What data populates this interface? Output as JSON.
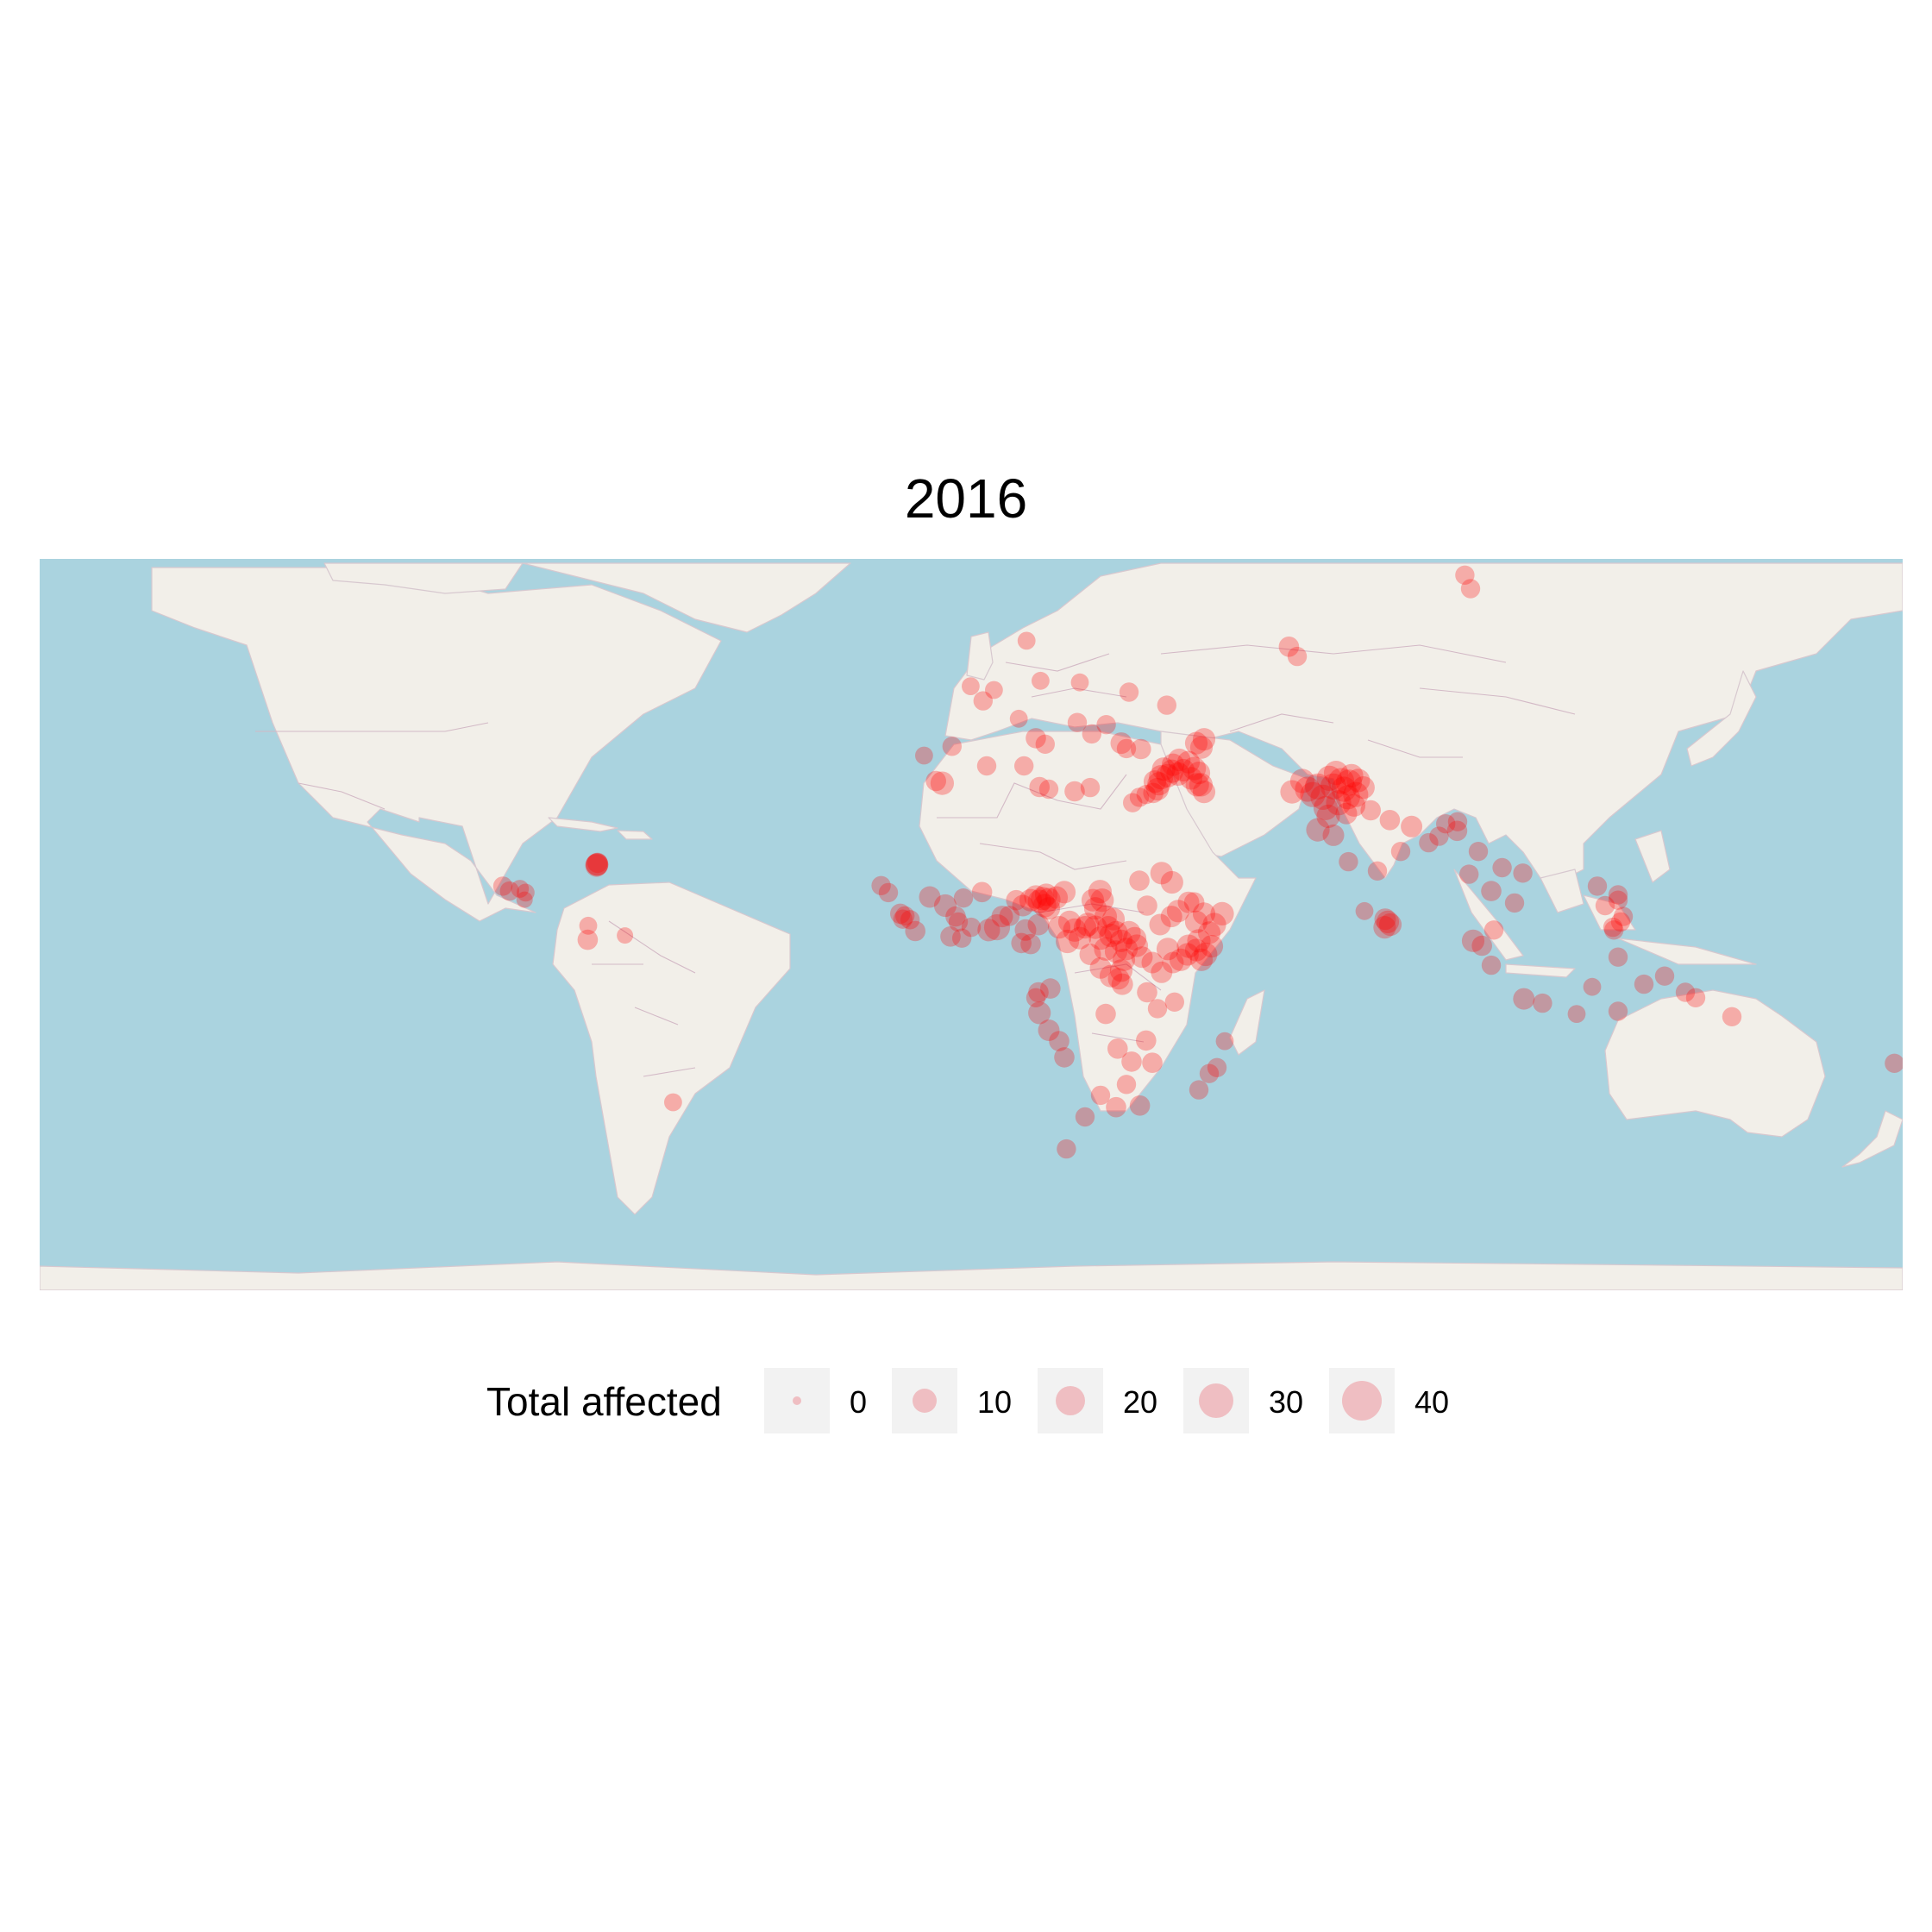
{
  "title": "2016",
  "legend": {
    "title": "Total affected",
    "entries": [
      {
        "label": "0",
        "value": 0
      },
      {
        "label": "10",
        "value": 10
      },
      {
        "label": "20",
        "value": 20
      },
      {
        "label": "30",
        "value": 30
      },
      {
        "label": "40",
        "value": 40
      }
    ]
  },
  "colors": {
    "ocean": "#aad3df",
    "land": "#f2efe9",
    "borders": "#d3b9c6",
    "point": "#ff0000",
    "legend_key_bg": "#f2f2f2"
  },
  "map_data": {
    "projection": "equirectangular",
    "lon_range": [
      -180,
      180
    ],
    "lat_range": [
      -60,
      75
    ],
    "points": [
      [
        -72.3,
        18.6,
        8
      ],
      [
        -72.4,
        18.4,
        8
      ],
      [
        -72.2,
        18.9,
        6
      ],
      [
        -72.3,
        18.6,
        8
      ],
      [
        -90.5,
        14.6,
        5
      ],
      [
        -87.2,
        14.1,
        4
      ],
      [
        -89.2,
        13.7,
        5
      ],
      [
        -86.3,
        12.1,
        3
      ],
      [
        -86.1,
        13.4,
        4
      ],
      [
        -74.1,
        4.7,
        6
      ],
      [
        -74.0,
        7.3,
        4
      ],
      [
        -66.9,
        5.5,
        3
      ],
      [
        -57.6,
        -25.3,
        4
      ],
      [
        -17.4,
        14.7,
        5
      ],
      [
        -16.0,
        13.4,
        5
      ],
      [
        -13.7,
        9.5,
        6
      ],
      [
        -12.8,
        9.1,
        5
      ],
      [
        -11.8,
        8.4,
        5
      ],
      [
        -10.8,
        6.3,
        6
      ],
      [
        -13.2,
        8.5,
        5
      ],
      [
        -8.0,
        12.6,
        7
      ],
      [
        -4.0,
        5.3,
        6
      ],
      [
        -1.5,
        12.4,
        5
      ],
      [
        -1.8,
        5.0,
        5
      ],
      [
        0.0,
        7.0,
        5
      ],
      [
        -3.0,
        9.0,
        6
      ],
      [
        -5.0,
        11.0,
        8
      ],
      [
        -2.5,
        8.0,
        5
      ],
      [
        2.1,
        13.5,
        6
      ],
      [
        3.4,
        6.5,
        8
      ],
      [
        5.0,
        7.0,
        12
      ],
      [
        6.0,
        9.0,
        7
      ],
      [
        7.4,
        9.1,
        6
      ],
      [
        8.7,
        12.0,
        6
      ],
      [
        10.0,
        11.0,
        7
      ],
      [
        13.2,
        11.8,
        9
      ],
      [
        13.8,
        12.3,
        9
      ],
      [
        12.5,
        12.6,
        9
      ],
      [
        14.2,
        11.0,
        9
      ],
      [
        11.5,
        12.0,
        8
      ],
      [
        15.0,
        12.1,
        9
      ],
      [
        14.5,
        13.0,
        8
      ],
      [
        9.7,
        4.1,
        6
      ],
      [
        11.5,
        3.9,
        6
      ],
      [
        10.5,
        6.5,
        7
      ],
      [
        13.0,
        7.5,
        7
      ],
      [
        15.0,
        10.5,
        8
      ],
      [
        16.5,
        12.5,
        8
      ],
      [
        18.0,
        13.5,
        8
      ],
      [
        18.6,
        4.4,
        9
      ],
      [
        20.0,
        6.5,
        9
      ],
      [
        19.0,
        8.0,
        8
      ],
      [
        17.0,
        7.0,
        8
      ],
      [
        21.0,
        5.0,
        8
      ],
      [
        22.0,
        7.0,
        8
      ],
      [
        23.5,
        12.0,
        8
      ],
      [
        24.9,
        13.6,
        9
      ],
      [
        25.3,
        12.0,
        9
      ],
      [
        24.0,
        10.5,
        8
      ],
      [
        26.0,
        9.0,
        8
      ],
      [
        27.5,
        8.5,
        8
      ],
      [
        28.0,
        6.0,
        9
      ],
      [
        29.0,
        4.5,
        8
      ],
      [
        30.5,
        6.0,
        9
      ],
      [
        31.6,
        4.9,
        9
      ],
      [
        30.0,
        3.0,
        8
      ],
      [
        32.0,
        3.6,
        8
      ],
      [
        29.5,
        1.0,
        8
      ],
      [
        29.0,
        -1.0,
        8
      ],
      [
        28.5,
        -2.5,
        7
      ],
      [
        29.2,
        -3.5,
        7
      ],
      [
        27.0,
        -2.0,
        8
      ],
      [
        25.0,
        -0.5,
        7
      ],
      [
        23.0,
        2.0,
        7
      ],
      [
        22.5,
        7.5,
        9
      ],
      [
        24.0,
        7.0,
        9
      ],
      [
        25.0,
        5.0,
        9
      ],
      [
        26.0,
        3.0,
        9
      ],
      [
        27.0,
        5.5,
        9
      ],
      [
        28.0,
        2.5,
        8
      ],
      [
        26.5,
        7.0,
        8
      ],
      [
        32.5,
        15.6,
        6
      ],
      [
        34.0,
        11.0,
        6
      ],
      [
        36.8,
        17.0,
        8
      ],
      [
        38.8,
        15.3,
        8
      ],
      [
        38.7,
        9.0,
        7
      ],
      [
        36.5,
        7.5,
        7
      ],
      [
        40.0,
        10.0,
        8
      ],
      [
        42.0,
        11.6,
        7
      ],
      [
        43.1,
        11.6,
        6
      ],
      [
        45.3,
        2.0,
        9
      ],
      [
        44.0,
        4.5,
        9
      ],
      [
        42.0,
        3.5,
        9
      ],
      [
        43.5,
        8.0,
        8
      ],
      [
        46.0,
        6.0,
        8
      ],
      [
        47.0,
        7.5,
        9
      ],
      [
        48.5,
        9.5,
        9
      ],
      [
        45.0,
        9.5,
        8
      ],
      [
        41.8,
        2.0,
        8
      ],
      [
        40.5,
        1.0,
        8
      ],
      [
        39.0,
        0.5,
        7
      ],
      [
        38.0,
        3.0,
        8
      ],
      [
        36.8,
        -1.3,
        7
      ],
      [
        35.0,
        0.5,
        7
      ],
      [
        33.0,
        1.5,
        7
      ],
      [
        43.5,
        2.8,
        8
      ],
      [
        44.5,
        1.0,
        8
      ],
      [
        46.5,
        3.5,
        8
      ],
      [
        13.2,
        -8.8,
        8
      ],
      [
        15.0,
        -12.0,
        7
      ],
      [
        17.0,
        -14.0,
        6
      ],
      [
        18.0,
        -17.0,
        6
      ],
      [
        13.0,
        -5.0,
        6
      ],
      [
        15.3,
        -4.3,
        6
      ],
      [
        12.5,
        -6.0,
        5
      ],
      [
        26.0,
        -9.0,
        6
      ],
      [
        28.3,
        -15.4,
        6
      ],
      [
        31.0,
        -17.8,
        6
      ],
      [
        32.6,
        -25.9,
        6
      ],
      [
        35.0,
        -18.0,
        6
      ],
      [
        33.8,
        -13.9,
        6
      ],
      [
        28.0,
        -26.2,
        6
      ],
      [
        18.4,
        -33.9,
        5
      ],
      [
        25.0,
        -24.0,
        5
      ],
      [
        22.0,
        -28.0,
        5
      ],
      [
        30.0,
        -22.0,
        5
      ],
      [
        39.3,
        -6.8,
        5
      ],
      [
        36.0,
        -8.0,
        5
      ],
      [
        34.0,
        -5.0,
        6
      ],
      [
        47.5,
        -18.9,
        5
      ],
      [
        44.0,
        -23.0,
        5
      ],
      [
        46.0,
        -20.0,
        5
      ],
      [
        49.0,
        -14.0,
        4
      ],
      [
        -5.6,
        33.6,
        9
      ],
      [
        -6.8,
        34.0,
        6
      ],
      [
        3.0,
        36.8,
        5
      ],
      [
        10.2,
        36.8,
        5
      ],
      [
        13.2,
        32.9,
        6
      ],
      [
        15.0,
        32.5,
        5
      ],
      [
        20.0,
        32.1,
        6
      ],
      [
        23.0,
        32.8,
        5
      ],
      [
        31.2,
        30.0,
        5
      ],
      [
        32.5,
        31.0,
        5
      ],
      [
        33.8,
        31.5,
        5
      ],
      [
        35.2,
        31.8,
        6
      ],
      [
        35.5,
        33.9,
        8
      ],
      [
        36.3,
        33.5,
        9
      ],
      [
        36.7,
        34.7,
        10
      ],
      [
        37.2,
        36.2,
        9
      ],
      [
        38.0,
        35.0,
        9
      ],
      [
        38.8,
        35.8,
        9
      ],
      [
        40.0,
        35.3,
        9
      ],
      [
        36.0,
        32.5,
        8
      ],
      [
        43.7,
        33.3,
        9
      ],
      [
        44.4,
        33.3,
        9
      ],
      [
        43.1,
        36.3,
        9
      ],
      [
        44.0,
        35.5,
        8
      ],
      [
        42.5,
        34.5,
        8
      ],
      [
        45.0,
        32.0,
        8
      ],
      [
        41.0,
        36.0,
        8
      ],
      [
        39.0,
        37.0,
        8
      ],
      [
        40.2,
        37.9,
        8
      ],
      [
        42.0,
        37.5,
        8
      ],
      [
        32.8,
        39.9,
        6
      ],
      [
        29.0,
        41.0,
        7
      ],
      [
        30.0,
        40.0,
        5
      ],
      [
        44.5,
        40.2,
        8
      ],
      [
        43.5,
        41.0,
        8
      ],
      [
        45.0,
        41.7,
        8
      ],
      [
        30.5,
        50.4,
        5
      ],
      [
        37.8,
        48.0,
        5
      ],
      [
        21.0,
        52.2,
        4
      ],
      [
        -3.7,
        40.4,
        5
      ],
      [
        2.3,
        48.8,
        5
      ],
      [
        4.4,
        50.8,
        4
      ],
      [
        12.5,
        41.9,
        6
      ],
      [
        14.3,
        40.8,
        5
      ],
      [
        20.5,
        44.8,
        5
      ],
      [
        23.3,
        42.7,
        5
      ],
      [
        26.1,
        44.4,
        5
      ],
      [
        -9.1,
        38.7,
        4
      ],
      [
        9.2,
        45.5,
        4
      ],
      [
        -0.1,
        51.5,
        4
      ],
      [
        13.4,
        52.5,
        4
      ],
      [
        10.7,
        59.9,
        4
      ],
      [
        61.4,
        58.8,
        6
      ],
      [
        63.0,
        57.0,
        5
      ],
      [
        69.2,
        34.5,
        11
      ],
      [
        67.0,
        33.0,
        12
      ],
      [
        66.0,
        31.5,
        11
      ],
      [
        68.0,
        31.0,
        11
      ],
      [
        70.0,
        33.0,
        12
      ],
      [
        71.5,
        34.0,
        12
      ],
      [
        72.0,
        32.5,
        11
      ],
      [
        73.0,
        33.7,
        12
      ],
      [
        74.3,
        31.5,
        11
      ],
      [
        71.0,
        30.0,
        11
      ],
      [
        68.5,
        29.0,
        10
      ],
      [
        67.0,
        25.0,
        9
      ],
      [
        69.0,
        27.5,
        9
      ],
      [
        72.8,
        31.0,
        10
      ],
      [
        65.0,
        32.5,
        11
      ],
      [
        62.0,
        32.0,
        9
      ],
      [
        64.0,
        34.0,
        10
      ],
      [
        70.5,
        35.5,
        10
      ],
      [
        73.5,
        35.0,
        9
      ],
      [
        74.8,
        34.1,
        9
      ],
      [
        75.8,
        32.8,
        8
      ],
      [
        74.0,
        29.5,
        8
      ],
      [
        72.5,
        28.0,
        7
      ],
      [
        70.0,
        24.0,
        7
      ],
      [
        72.9,
        19.1,
        5
      ],
      [
        77.2,
        28.6,
        6
      ],
      [
        80.9,
        26.8,
        6
      ],
      [
        85.1,
        25.6,
        7
      ],
      [
        88.4,
        22.6,
        5
      ],
      [
        83.0,
        21.0,
        5
      ],
      [
        91.7,
        26.1,
        5
      ],
      [
        93.9,
        24.8,
        6
      ],
      [
        94.0,
        26.5,
        5
      ],
      [
        78.5,
        17.4,
        5
      ],
      [
        76.0,
        10.0,
        4
      ],
      [
        79.9,
        7.0,
        8
      ],
      [
        80.5,
        8.0,
        8
      ],
      [
        81.0,
        7.5,
        8
      ],
      [
        80.0,
        8.5,
        7
      ],
      [
        90.4,
        23.8,
        5
      ],
      [
        96.2,
        16.8,
        5
      ],
      [
        98.0,
        21.0,
        5
      ],
      [
        100.5,
        13.7,
        6
      ],
      [
        101.0,
        6.5,
        5
      ],
      [
        105.0,
        11.5,
        5
      ],
      [
        106.6,
        17.0,
        5
      ],
      [
        102.6,
        18.0,
        5
      ],
      [
        98.7,
        3.6,
        6
      ],
      [
        100.5,
        0.0,
        5
      ],
      [
        97.0,
        4.5,
        8
      ],
      [
        106.8,
        -6.2,
        7
      ],
      [
        110.4,
        -7.0,
        5
      ],
      [
        125.0,
        13.0,
        5
      ],
      [
        124.0,
        7.0,
        5
      ],
      [
        125.5,
        8.0,
        5
      ],
      [
        122.5,
        11.0,
        5
      ],
      [
        121.0,
        14.6,
        5
      ],
      [
        125.0,
        12.0,
        5
      ],
      [
        126.0,
        9.0,
        5
      ],
      [
        124.2,
        6.5,
        5
      ],
      [
        125.0,
        1.5,
        5
      ],
      [
        125.0,
        -8.5,
        5
      ],
      [
        130.0,
        -3.5,
        5
      ],
      [
        134.0,
        -2.0,
        5
      ],
      [
        138.0,
        -5.0,
        5
      ],
      [
        140.0,
        -6.0,
        5
      ],
      [
        147.0,
        -9.5,
        5
      ],
      [
        178.4,
        -18.1,
        5
      ],
      [
        117.0,
        -9.0,
        4
      ],
      [
        120.0,
        -4.0,
        4
      ],
      [
        95.4,
        72.0,
        5
      ],
      [
        96.5,
        69.5,
        5
      ]
    ]
  }
}
